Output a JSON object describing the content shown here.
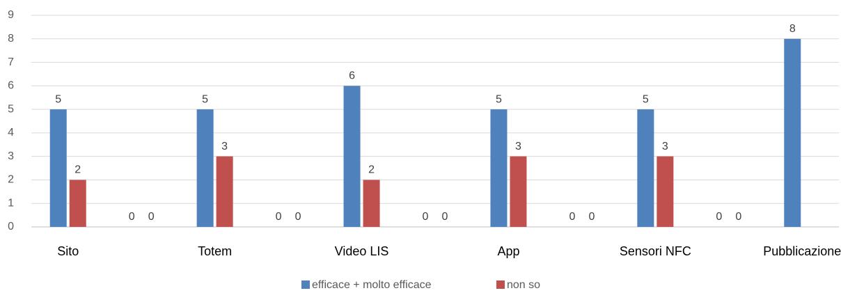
{
  "chart_data": {
    "type": "bar",
    "categories": [
      "Sito",
      null,
      "Totem",
      null,
      "Video LIS",
      null,
      "App",
      null,
      "Sensori NFC",
      null,
      "Pubblicazione"
    ],
    "series": [
      {
        "name": "efficace  + molto efficace",
        "color": "#4f81bd",
        "values": [
          5,
          0,
          5,
          0,
          6,
          0,
          5,
          0,
          5,
          0,
          8
        ]
      },
      {
        "name": "non so",
        "color": "#c0504d",
        "values": [
          2,
          0,
          3,
          0,
          2,
          0,
          3,
          0,
          3,
          0,
          null
        ]
      }
    ],
    "ylim": [
      0,
      9
    ],
    "yticks": [
      0,
      1,
      2,
      3,
      4,
      5,
      6,
      7,
      8,
      9
    ],
    "grid": true,
    "legend": "bottom"
  }
}
